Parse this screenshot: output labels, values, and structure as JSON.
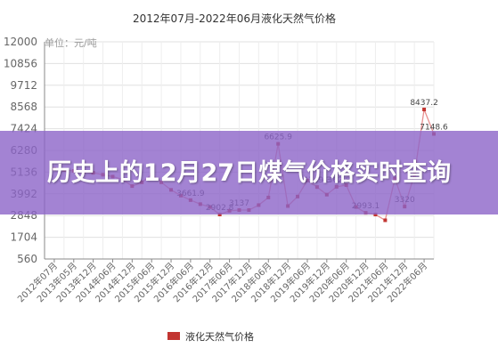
{
  "chart_data": {
    "type": "line",
    "title": "2012年07月-2022年06月液化天然气价格",
    "unit_label": "单位：元/吨",
    "ylim": [
      560,
      12000
    ],
    "yticks": [
      "12000",
      "10856",
      "9712",
      "8568",
      "7424",
      "6280",
      "5136",
      "3992",
      "2848",
      "1704",
      "560"
    ],
    "categories": [
      "2012年07月",
      "2013年05月",
      "2013年12月",
      "2014年06月",
      "2014年12月",
      "2015年06月",
      "2015年12月",
      "2016年06月",
      "2016年12月",
      "2017年06月",
      "2017年12月",
      "2018年06月",
      "2018年12月",
      "2019年06月",
      "2019年12月",
      "2020年06月",
      "2020年12月",
      "2021年06月",
      "2021年12月",
      "2022年06月"
    ],
    "grid": true,
    "legend_position": "bottom",
    "series": [
      {
        "name": "液化天然气价格",
        "color": "#c23531",
        "x": [
          0,
          0.5,
          1,
          1.5,
          2,
          2.5,
          3,
          3.5,
          4,
          4.5,
          5,
          5.5,
          6,
          6.5,
          7,
          7.5,
          8,
          8.5,
          9,
          9.5,
          10,
          10.5,
          11,
          11.5,
          12,
          12.5,
          13,
          13.5,
          14,
          14.5,
          15,
          15.5,
          16,
          16.5,
          17,
          17.5,
          18,
          18.5,
          19,
          19.5
        ],
        "values": [
          5300,
          5250,
          5200,
          5150,
          5100,
          5000,
          4900,
          4750,
          4400,
          4600,
          5000,
          4600,
          4200,
          3900,
          3661.9,
          3450,
          3300,
          2902.8,
          3100,
          3137,
          3137,
          3400,
          3800,
          6625.9,
          3350,
          3850,
          4700,
          4349.3,
          3950,
          4362.8,
          4450,
          3300,
          2993.1,
          2900,
          2600,
          4800,
          3320,
          5000,
          8437.2,
          7148.6
        ]
      }
    ],
    "data_labels": [
      {
        "text": "3661.9",
        "x": 7,
        "y": 3661.9
      },
      {
        "text": "2902.8",
        "x": 8.5,
        "y": 2902.8
      },
      {
        "text": "3137",
        "x": 9.5,
        "y": 3137
      },
      {
        "text": "6625.9",
        "x": 11.5,
        "y": 6625.9
      },
      {
        "text": "4349.3",
        "x": 13.5,
        "y": 4349.3
      },
      {
        "text": "4362.8",
        "x": 14.5,
        "y": 4362.8
      },
      {
        "text": "2993.1",
        "x": 16,
        "y": 2993.1
      },
      {
        "text": "3320",
        "x": 18,
        "y": 3320
      },
      {
        "text": "8437.2",
        "x": 19,
        "y": 8437.2
      },
      {
        "text": "7148.6",
        "x": 19.5,
        "y": 7148.6
      }
    ]
  },
  "banner": {
    "title": "历史上的12月27日煤气价格实时查询"
  }
}
